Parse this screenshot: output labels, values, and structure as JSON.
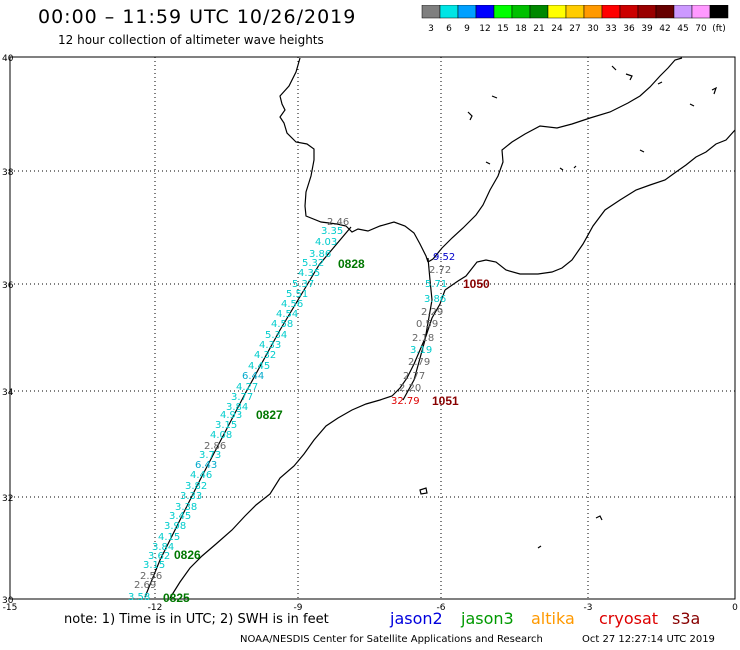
{
  "header": {
    "title": "00:00 – 11:59 UTC 10/26/2019",
    "subtitle": "12 hour collection of altimeter wave heights"
  },
  "scale": {
    "colors": [
      "#7f7f7f",
      "#00e5e5",
      "#00a0ff",
      "#0000ff",
      "#00ff00",
      "#00c000",
      "#008800",
      "#ffff00",
      "#ffcc00",
      "#ff9900",
      "#ff0000",
      "#cc0000",
      "#990000",
      "#660000",
      "#cc99ff",
      "#ff99ff",
      "#000000"
    ],
    "labels": [
      "3",
      "6",
      "9",
      "12",
      "15",
      "18",
      "21",
      "24",
      "27",
      "30",
      "33",
      "36",
      "39",
      "42",
      "45",
      "70",
      "(ft)"
    ]
  },
  "axes": {
    "lat_labels": [
      "40",
      "38",
      "36",
      "34",
      "32",
      "30"
    ],
    "lon_labels": [
      "-15",
      "-12",
      "-9",
      "-6",
      "-3",
      "0"
    ]
  },
  "passes": [
    {
      "label": "0825",
      "color": "#007700"
    },
    {
      "label": "0826",
      "color": "#007700"
    },
    {
      "label": "0827",
      "color": "#007700"
    },
    {
      "label": "0828",
      "color": "#007700"
    },
    {
      "label": "1050",
      "color": "#880000"
    },
    {
      "label": "1051",
      "color": "#880000"
    }
  ],
  "track_west": [
    {
      "v": "2.46",
      "c": "#666666"
    },
    {
      "v": "3.35",
      "c": "#00cccc"
    },
    {
      "v": "4.03",
      "c": "#00cccc"
    },
    {
      "v": "3.86",
      "c": "#00cccc"
    },
    {
      "v": "5.32",
      "c": "#00cccc"
    },
    {
      "v": "4.35",
      "c": "#00cccc"
    },
    {
      "v": "5.37",
      "c": "#00cccc"
    },
    {
      "v": "5.51",
      "c": "#00cccc"
    },
    {
      "v": "4.56",
      "c": "#00cccc"
    },
    {
      "v": "4.54",
      "c": "#00cccc"
    },
    {
      "v": "4.58",
      "c": "#00cccc"
    },
    {
      "v": "5.34",
      "c": "#00cccc"
    },
    {
      "v": "4.33",
      "c": "#00cccc"
    },
    {
      "v": "4.32",
      "c": "#00cccc"
    },
    {
      "v": "4.45",
      "c": "#00cccc"
    },
    {
      "v": "6.44",
      "c": "#00aacc"
    },
    {
      "v": "4.27",
      "c": "#00cccc"
    },
    {
      "v": "3.77",
      "c": "#00cccc"
    },
    {
      "v": "3.84",
      "c": "#00cccc"
    },
    {
      "v": "4.93",
      "c": "#00cccc"
    },
    {
      "v": "3.15",
      "c": "#00cccc"
    },
    {
      "v": "4.08",
      "c": "#00cccc"
    },
    {
      "v": "2.86",
      "c": "#666666"
    },
    {
      "v": "3.73",
      "c": "#00cccc"
    },
    {
      "v": "6.43",
      "c": "#00aacc"
    },
    {
      "v": "4.46",
      "c": "#00cccc"
    },
    {
      "v": "3.82",
      "c": "#00cccc"
    },
    {
      "v": "3.33",
      "c": "#00cccc"
    },
    {
      "v": "3.38",
      "c": "#00cccc"
    },
    {
      "v": "3.45",
      "c": "#00cccc"
    },
    {
      "v": "3.98",
      "c": "#00cccc"
    },
    {
      "v": "4.15",
      "c": "#00cccc"
    },
    {
      "v": "3.84",
      "c": "#00cccc"
    },
    {
      "v": "3.62",
      "c": "#00cccc"
    },
    {
      "v": "3.15",
      "c": "#00cccc"
    },
    {
      "v": "2.56",
      "c": "#666666"
    },
    {
      "v": "2.69",
      "c": "#666666"
    },
    {
      "v": "3.58",
      "c": "#00cccc"
    }
  ],
  "track_east": [
    {
      "v": "9.52",
      "c": "#0000cc"
    },
    {
      "v": "2.72",
      "c": "#666666"
    },
    {
      "v": "5.71",
      "c": "#00cccc"
    },
    {
      "v": "3.86",
      "c": "#00cccc"
    },
    {
      "v": "2.29",
      "c": "#666666"
    },
    {
      "v": "0.59",
      "c": "#666666"
    },
    {
      "v": "2.18",
      "c": "#666666"
    },
    {
      "v": "3.19",
      "c": "#00cccc"
    },
    {
      "v": "2.79",
      "c": "#666666"
    },
    {
      "v": "2.77",
      "c": "#666666"
    },
    {
      "v": "2.20",
      "c": "#666666"
    },
    {
      "v": "32.79",
      "c": "#dd0000"
    }
  ],
  "footer": {
    "note": "note: 1) Time is in UTC; 2) SWH is in feet",
    "credit": "NOAA/NESDIS Center for Satellite Applications and Research",
    "timestamp": "Oct 27 12:27:14 UTC 2019"
  },
  "satellites": [
    {
      "name": "jason2",
      "color": "#0000dd"
    },
    {
      "name": "jason3",
      "color": "#009900"
    },
    {
      "name": "altika",
      "color": "#ff9900"
    },
    {
      "name": "cryosat",
      "color": "#dd0000"
    },
    {
      "name": "s3a",
      "color": "#880000"
    }
  ]
}
